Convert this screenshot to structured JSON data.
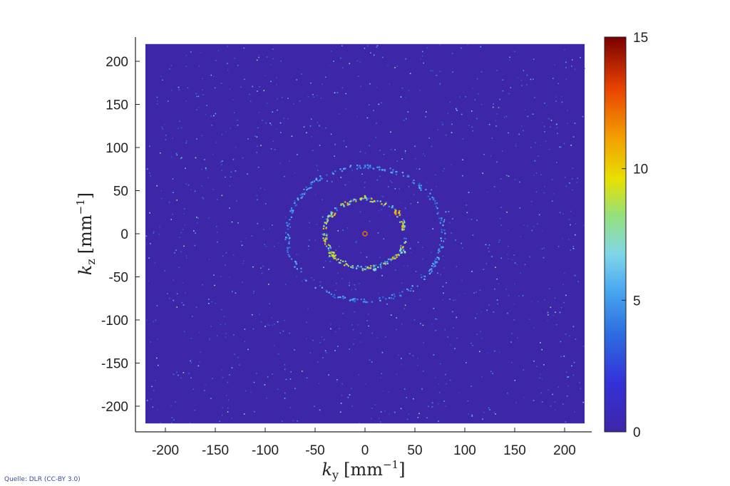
{
  "chart_data": {
    "type": "heatmap",
    "title": "",
    "xlabel": {
      "symbol": "k",
      "subscript": "y",
      "unit": "[mm",
      "exponent": "−1",
      "close": "]"
    },
    "ylabel": {
      "symbol": "k",
      "subscript": "z",
      "unit": "[mm",
      "exponent": "−1",
      "close": "]"
    },
    "xlim": [
      -225,
      225
    ],
    "ylim": [
      -225,
      225
    ],
    "data_extent": [
      -220,
      220
    ],
    "x_ticks": [
      -200,
      -150,
      -100,
      -50,
      0,
      50,
      100,
      150,
      200
    ],
    "y_ticks": [
      -200,
      -150,
      -100,
      -50,
      0,
      50,
      100,
      150,
      200
    ],
    "x_tick_labels": [
      "-200",
      "-150",
      "-100",
      "-50",
      "0",
      "50",
      "100",
      "150",
      "200"
    ],
    "y_tick_labels": [
      "-200",
      "-150",
      "-100",
      "-50",
      "0",
      "50",
      "100",
      "150",
      "200"
    ],
    "colorbar": {
      "min": 0,
      "max": 15,
      "ticks": [
        0,
        5,
        10,
        15
      ],
      "tick_labels": [
        "0",
        "5",
        "10",
        "15"
      ],
      "colormap": "jet"
    },
    "background_value": 1.5,
    "features": [
      {
        "kind": "ring",
        "center": [
          0,
          0
        ],
        "radius": 40,
        "peak_value": 11,
        "description": ""
      },
      {
        "kind": "ring",
        "center": [
          0,
          0
        ],
        "radius": 78,
        "peak_value": 6,
        "description": ""
      },
      {
        "kind": "point",
        "x": 0,
        "y": 0,
        "value": 12
      }
    ],
    "hotspots": [
      {
        "x": 32,
        "y": 25,
        "value": 12
      },
      {
        "x": -33,
        "y": -24,
        "value": 11
      },
      {
        "x": -2,
        "y": 41,
        "value": 10
      },
      {
        "x": -35,
        "y": 22,
        "value": 9
      },
      {
        "x": 38,
        "y": -20,
        "value": 8
      },
      {
        "x": 10,
        "y": -40,
        "value": 8
      }
    ],
    "grid": false,
    "legend": "none"
  },
  "source_note": "Quelle: DLR (CC-BY 3.0)"
}
